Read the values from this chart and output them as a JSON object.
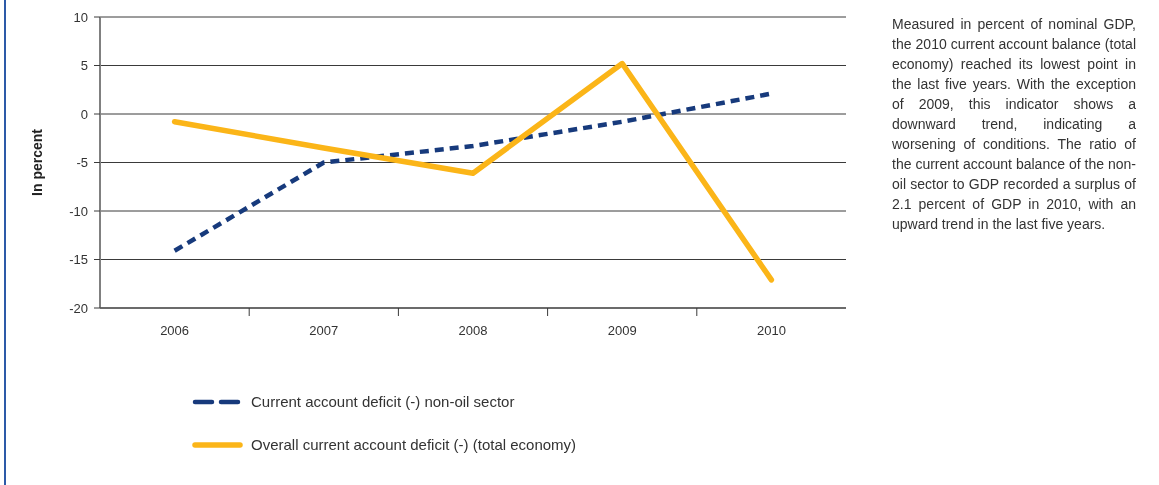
{
  "chart_data": {
    "type": "line",
    "ylabel": "In percent",
    "categories": [
      "2006",
      "2007",
      "2008",
      "2009",
      "2010"
    ],
    "series": [
      {
        "name": "Current account deficit (-) non-oil sector",
        "color": "#173a7c",
        "line_style": "dashed",
        "values": [
          -14.1,
          -5.0,
          -3.3,
          -0.8,
          2.1
        ]
      },
      {
        "name": "Overall current account deficit (-) (total economy)",
        "color": "#fbb518",
        "line_style": "solid",
        "values": [
          -0.8,
          -3.5,
          -6.1,
          5.2,
          -17.1
        ]
      }
    ],
    "ylim": [
      -20,
      10
    ],
    "yticks": [
      -20,
      -15,
      -10,
      -5,
      0,
      5,
      10
    ],
    "grid": "y",
    "legend": "bottom",
    "annotations": [
      "Measured in percent of nominal GDP, the 2010 current account balance (total economy) reached its lowest point in the last five years. With the exception of 2009, this indicator shows a downward trend, indicating a worsening of conditions. The ratio of the current account balance of the non-oil sector to GDP recorded a surplus of 2.1 percent of GDP in 2010, with an upward trend in the last five years."
    ]
  }
}
